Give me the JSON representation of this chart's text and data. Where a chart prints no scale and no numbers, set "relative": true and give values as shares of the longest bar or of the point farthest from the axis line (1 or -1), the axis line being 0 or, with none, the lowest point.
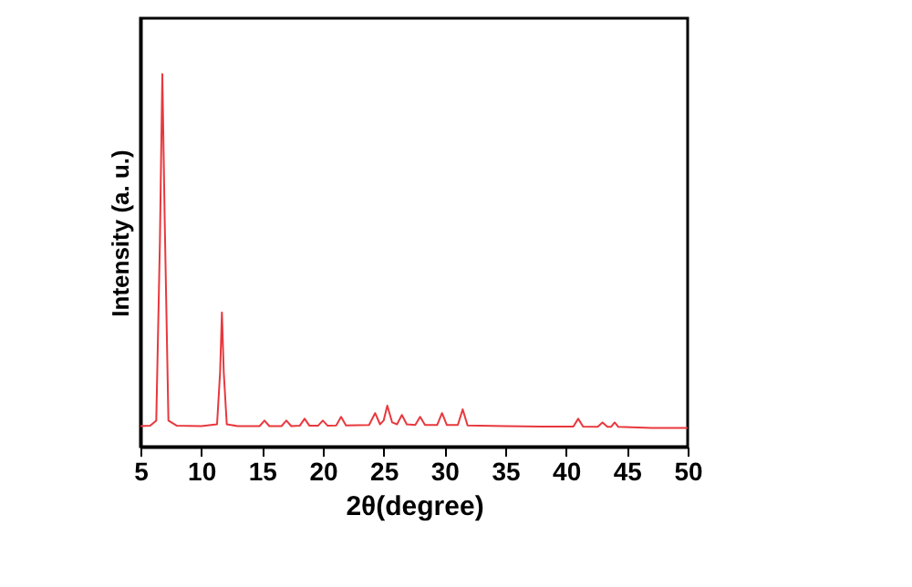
{
  "chart_data": {
    "type": "line",
    "relative": true,
    "xlabel": "2θ(degree)",
    "ylabel": "Intensity (a. u.)",
    "xlim": [
      5,
      50
    ],
    "xticks": [
      5,
      10,
      15,
      20,
      25,
      30,
      35,
      40,
      45,
      50
    ],
    "tick_labels": "x",
    "grid": false,
    "series": [
      {
        "color": "#e8383d",
        "x": [
          5,
          5.8,
          6.3,
          6.6,
          6.8,
          7.0,
          7.3,
          8,
          10,
          11.3,
          11.55,
          11.7,
          11.85,
          12.1,
          13,
          14.8,
          15.2,
          15.6,
          16.6,
          17,
          17.4,
          18.1,
          18.5,
          18.9,
          19.6,
          20,
          20.4,
          21.1,
          21.5,
          21.9,
          23.8,
          24.3,
          24.7,
          25.0,
          25.3,
          25.7,
          26.1,
          26.5,
          26.9,
          27.6,
          28,
          28.4,
          29.4,
          29.8,
          30.2,
          31.1,
          31.5,
          31.9,
          35,
          38,
          40.6,
          41,
          41.4,
          42.6,
          43,
          43.4,
          43.7,
          44,
          44.3,
          47,
          50
        ],
        "values": [
          0.055,
          0.056,
          0.07,
          0.55,
          1.0,
          0.6,
          0.07,
          0.056,
          0.055,
          0.06,
          0.2,
          0.36,
          0.2,
          0.06,
          0.055,
          0.055,
          0.07,
          0.055,
          0.055,
          0.07,
          0.055,
          0.056,
          0.075,
          0.056,
          0.056,
          0.07,
          0.056,
          0.057,
          0.08,
          0.057,
          0.058,
          0.09,
          0.06,
          0.07,
          0.11,
          0.065,
          0.06,
          0.085,
          0.06,
          0.058,
          0.08,
          0.058,
          0.058,
          0.09,
          0.058,
          0.058,
          0.1,
          0.057,
          0.055,
          0.054,
          0.054,
          0.075,
          0.054,
          0.053,
          0.065,
          0.053,
          0.053,
          0.065,
          0.053,
          0.05,
          0.05
        ]
      }
    ]
  }
}
